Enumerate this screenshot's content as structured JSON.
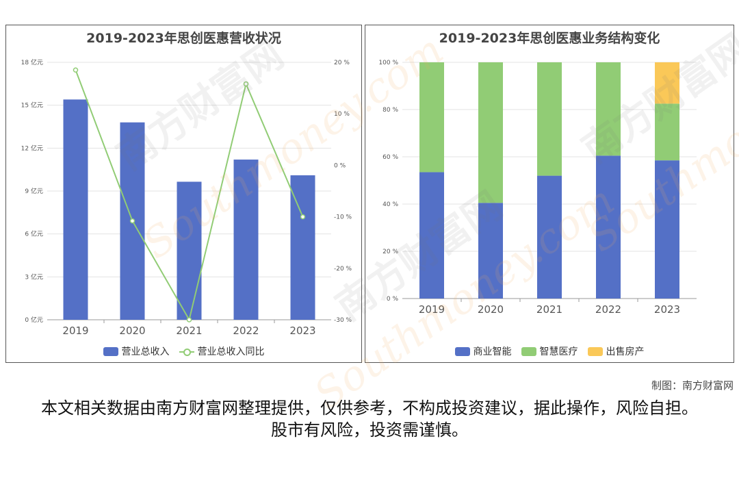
{
  "charts": {
    "left": {
      "title": "2019-2023年思创医惠营收状况",
      "legend": {
        "bar": "营业总收入",
        "line": "营业总收入同比"
      }
    },
    "right": {
      "title": "2019-2023年思创医惠业务结构变化",
      "legend": {
        "s1": "商业智能",
        "s2": "智慧医疗",
        "s3": "出售房产"
      }
    }
  },
  "chart_data": [
    {
      "type": "bar",
      "title": "2019-2023年思创医惠营收状况",
      "categories": [
        "2019",
        "2020",
        "2021",
        "2022",
        "2023"
      ],
      "series": [
        {
          "name": "营业总收入",
          "type": "bar",
          "axis": "left",
          "values": [
            15.4,
            13.8,
            9.65,
            11.2,
            10.1
          ],
          "color": "#5470c6"
        },
        {
          "name": "营业总收入同比",
          "type": "line",
          "axis": "right",
          "values": [
            18.5,
            -10.8,
            -30.0,
            15.8,
            -10.0
          ],
          "color": "#91cc75"
        }
      ],
      "y_left": {
        "min": 0,
        "max": 18,
        "ticks": [
          0,
          3,
          6,
          9,
          12,
          15,
          18
        ],
        "unit": "亿元"
      },
      "y_right": {
        "min": -30,
        "max": 20,
        "ticks": [
          -30,
          -20,
          -10,
          0,
          10,
          20
        ],
        "unit": "%"
      },
      "grid": true
    },
    {
      "type": "bar",
      "stacked": true,
      "title": "2019-2023年思创医惠业务结构变化",
      "categories": [
        "2019",
        "2020",
        "2021",
        "2022",
        "2023"
      ],
      "series": [
        {
          "name": "商业智能",
          "values": [
            53.5,
            40.5,
            52,
            60.5,
            58.5
          ],
          "color": "#5470c6"
        },
        {
          "name": "智慧医疗",
          "values": [
            46.5,
            59.5,
            48,
            39.5,
            24
          ],
          "color": "#91cc75"
        },
        {
          "name": "出售房产",
          "values": [
            0,
            0,
            0,
            0,
            17.5
          ],
          "color": "#fac858"
        }
      ],
      "y": {
        "min": 0,
        "max": 100,
        "ticks": [
          0,
          20,
          40,
          60,
          80,
          100
        ],
        "unit": "%"
      },
      "grid": true
    }
  ],
  "footer": {
    "credit": "制图：南方财富网",
    "disclaimer": "本文相关数据由南方财富网整理提供，仅供参考，不构成投资建议，据此操作，风险自担。股市有风险，投资需谨慎。"
  },
  "watermark": {
    "cn": "南方财富网",
    "en": "Southmoney.com"
  }
}
